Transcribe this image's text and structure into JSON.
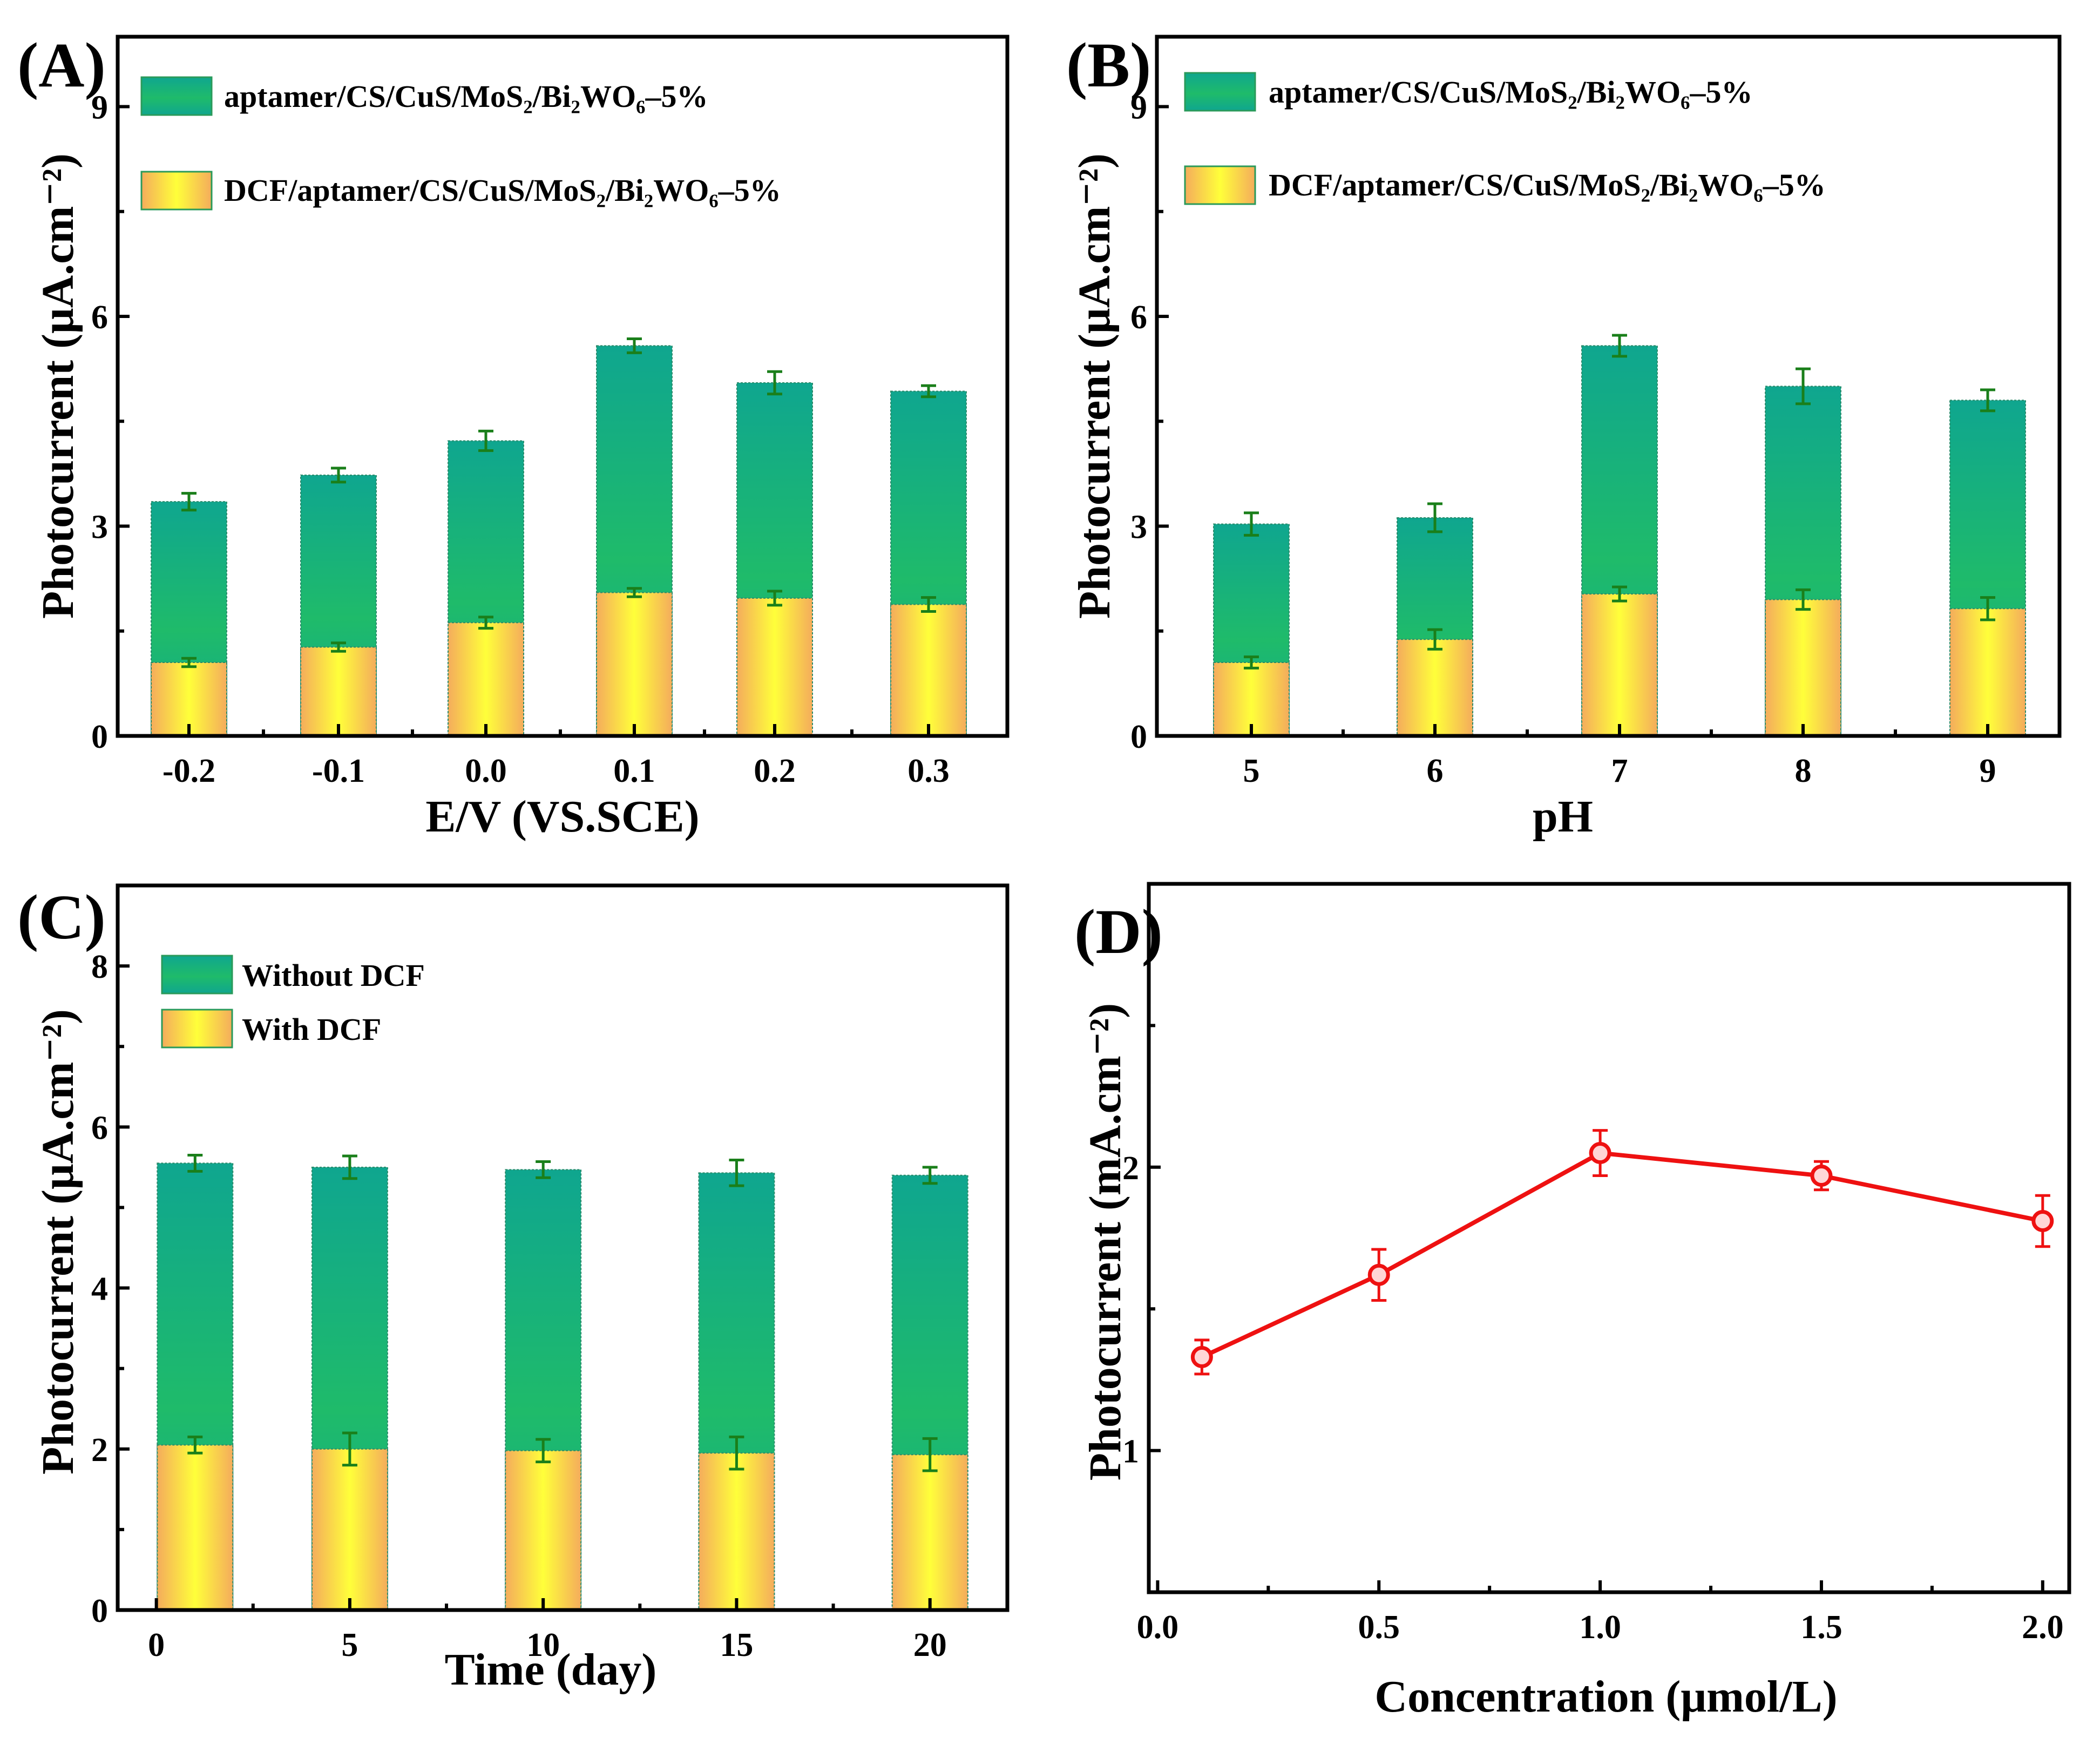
{
  "colors": {
    "teal_top": "#0fa68f",
    "teal_mid": "#1fbb6a",
    "yellow_center": "#ffff3a",
    "orange_edge": "#f4ac5c",
    "errbar_green": "#1a7f1a",
    "line_red": "#ee1111"
  },
  "chart_data": [
    {
      "panel": "(A)",
      "type": "bar",
      "xlabel": "E/V (VS.SCE)",
      "ylabel": "Photocurrent (μA.cm⁻²)",
      "ylim": [
        0,
        10
      ],
      "yticks": [
        0,
        3,
        6,
        9
      ],
      "categories": [
        "-0.2",
        "-0.1",
        "0.0",
        "0.1",
        "0.2",
        "0.3"
      ],
      "series": [
        {
          "name": "aptamer/CS/CuS/MoS₂/Bi₂WO₆–5%",
          "values": [
            3.35,
            3.73,
            4.22,
            5.58,
            5.05,
            4.93
          ],
          "errors": [
            0.12,
            0.1,
            0.14,
            0.1,
            0.16,
            0.08
          ]
        },
        {
          "name": "DCF/aptamer/CS/CuS/MoS₂/Bi₂WO₆–5%",
          "values": [
            1.05,
            1.27,
            1.62,
            2.05,
            1.97,
            1.88
          ],
          "errors": [
            0.06,
            0.06,
            0.08,
            0.06,
            0.1,
            0.1
          ]
        }
      ]
    },
    {
      "panel": "(B)",
      "type": "bar",
      "xlabel": "pH",
      "ylabel": "Photocurrent (μA.cm⁻²)",
      "ylim": [
        0,
        10
      ],
      "yticks": [
        0,
        3,
        6,
        9
      ],
      "categories": [
        "5",
        "6",
        "7",
        "8",
        "9"
      ],
      "series": [
        {
          "name": "aptamer/CS/CuS/MoS₂/Bi₂WO₆–5%",
          "values": [
            3.03,
            3.12,
            5.58,
            5.0,
            4.8
          ],
          "errors": [
            0.16,
            0.2,
            0.15,
            0.25,
            0.15
          ]
        },
        {
          "name": "DCF/aptamer/CS/CuS/MoS₂/Bi₂WO₆–5%",
          "values": [
            1.05,
            1.38,
            2.03,
            1.95,
            1.82
          ],
          "errors": [
            0.08,
            0.14,
            0.1,
            0.14,
            0.16
          ]
        }
      ]
    },
    {
      "panel": "(C)",
      "type": "bar",
      "xlabel": "Time (day)",
      "ylabel": "Photocurrent (μA.cm⁻²)",
      "xlim": [
        -1,
        22
      ],
      "xticks": [
        0,
        5,
        10,
        15,
        20
      ],
      "ylim": [
        0,
        9
      ],
      "yticks": [
        0,
        2,
        4,
        6,
        8
      ],
      "x": [
        1,
        5,
        10,
        15,
        20
      ],
      "series": [
        {
          "name": "Without DCF",
          "values": [
            5.55,
            5.5,
            5.47,
            5.43,
            5.4
          ],
          "errors": [
            0.1,
            0.14,
            0.1,
            0.16,
            0.1
          ]
        },
        {
          "name": "With DCF",
          "values": [
            2.05,
            2.0,
            1.98,
            1.95,
            1.93
          ],
          "errors": [
            0.1,
            0.2,
            0.14,
            0.2,
            0.2
          ]
        }
      ]
    },
    {
      "panel": "(D)",
      "type": "line",
      "xlabel": "Concentration (μmol/L)",
      "ylabel": "Photocurrent (mA.cm⁻²)",
      "xlim": [
        -0.02,
        2.06
      ],
      "xticks": [
        "0.0",
        "0.5",
        "1.0",
        "1.5",
        "2.0"
      ],
      "ylim": [
        0.5,
        3.0
      ],
      "yticks": [
        1,
        2
      ],
      "series": [
        {
          "name": "Photocurrent",
          "x": [
            0.1,
            0.5,
            1.0,
            1.5,
            2.0
          ],
          "y": [
            1.33,
            1.62,
            2.05,
            1.97,
            1.81
          ],
          "errors": [
            0.06,
            0.09,
            0.08,
            0.05,
            0.09
          ]
        }
      ]
    }
  ]
}
